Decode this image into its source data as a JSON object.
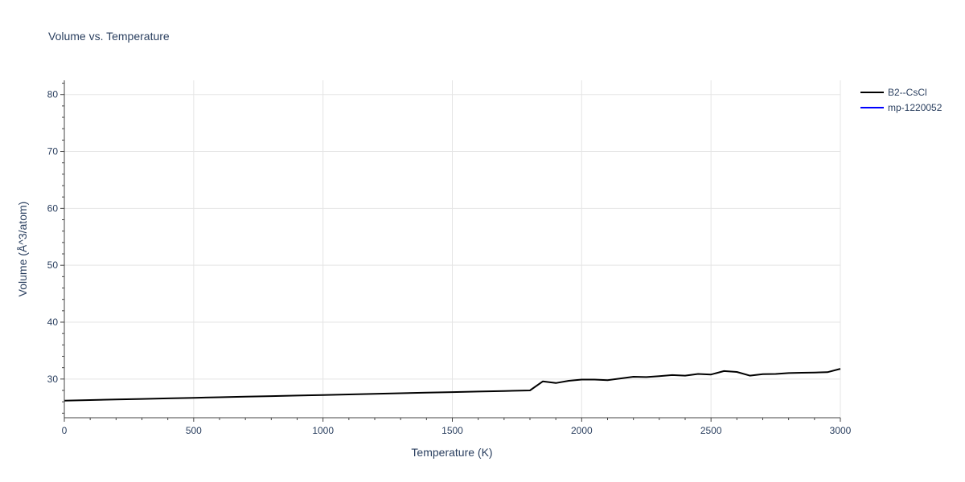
{
  "chart_data": {
    "type": "line",
    "title": "Volume vs. Temperature",
    "xlabel": "Temperature (K)",
    "ylabel": "Volume (Å^3/atom)",
    "xlim": [
      0,
      3000
    ],
    "ylim": [
      23.2,
      82.5
    ],
    "xticks": [
      0,
      500,
      1000,
      1500,
      2000,
      2500,
      3000
    ],
    "yticks": [
      30,
      40,
      50,
      60,
      70,
      80
    ],
    "grid": true,
    "legend_position": "top-right",
    "series": [
      {
        "name": "B2--CsCl",
        "color": "#000000",
        "x": [
          0,
          100,
          200,
          300,
          400,
          500,
          600,
          700,
          800,
          900,
          1000,
          1100,
          1200,
          1300,
          1400,
          1500,
          1600,
          1700,
          1800,
          1850,
          1900,
          1950,
          2000,
          2050,
          2100,
          2150,
          2200,
          2250,
          2300,
          2350,
          2400,
          2450,
          2500,
          2550,
          2600,
          2650,
          2700,
          2750,
          2800,
          2850,
          2900,
          2950,
          3000
        ],
        "y": [
          26.2,
          26.3,
          26.4,
          26.5,
          26.6,
          26.7,
          26.8,
          26.9,
          27.0,
          27.1,
          27.2,
          27.3,
          27.4,
          27.5,
          27.6,
          27.7,
          27.8,
          27.9,
          28.0,
          29.6,
          29.3,
          29.7,
          29.9,
          29.9,
          29.8,
          30.1,
          30.4,
          30.35,
          30.5,
          30.7,
          30.6,
          30.9,
          30.8,
          31.4,
          31.25,
          30.6,
          30.85,
          30.9,
          31.05,
          31.1,
          31.15,
          31.2,
          31.8
        ]
      },
      {
        "name": "mp-1220052",
        "color": "#0000ff",
        "x": [],
        "y": []
      }
    ]
  }
}
